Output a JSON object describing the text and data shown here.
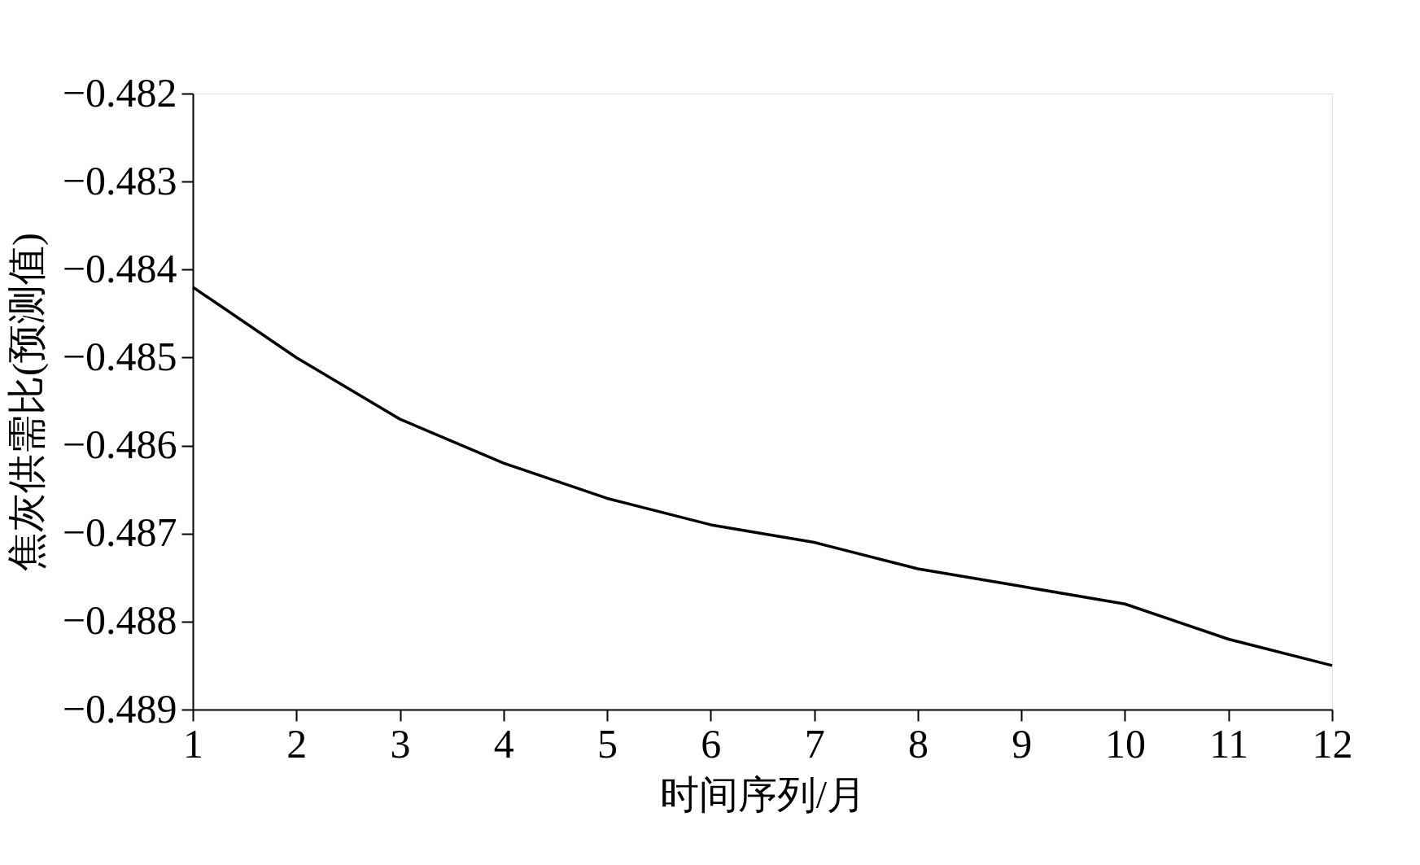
{
  "chart_data": {
    "type": "line",
    "xlabel": "时间序列/月",
    "ylabel": "焦灰供需比(预测值)",
    "x": [
      1,
      2,
      3,
      4,
      5,
      6,
      7,
      8,
      9,
      10,
      11,
      12
    ],
    "series": [
      {
        "color": "#000000",
        "values": [
          -0.4842,
          -0.485,
          -0.4857,
          -0.4862,
          -0.4866,
          -0.4869,
          -0.4871,
          -0.4874,
          -0.4876,
          -0.4878,
          -0.4882,
          -0.4885
        ]
      }
    ],
    "xlim": [
      1,
      12
    ],
    "xticks": [
      1,
      2,
      3,
      4,
      5,
      6,
      7,
      8,
      9,
      10,
      11,
      12
    ],
    "ylim": [
      -0.489,
      -0.482
    ],
    "yticks": [
      -0.489,
      -0.488,
      -0.487,
      -0.486,
      -0.485,
      -0.484,
      -0.483,
      -0.482
    ],
    "grid": false,
    "marker": "none",
    "line_style": "solid"
  }
}
